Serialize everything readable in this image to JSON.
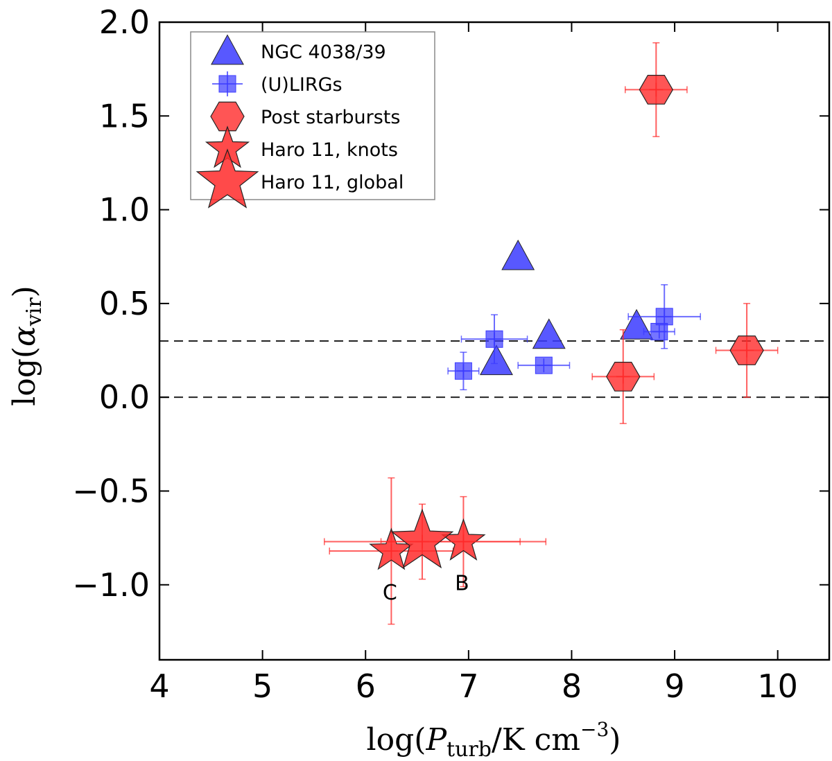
{
  "chart_data": {
    "type": "scatter",
    "xlim": [
      4,
      10.5
    ],
    "ylim": [
      -1.4,
      2.0
    ],
    "xticks": [
      4,
      5,
      6,
      7,
      8,
      9,
      10
    ],
    "xtick_labels": [
      "4",
      "5",
      "6",
      "7",
      "8",
      "9",
      "10"
    ],
    "yticks": [
      -1.0,
      -0.5,
      0.0,
      0.5,
      1.0,
      1.5,
      2.0
    ],
    "ytick_labels": [
      "−1.0",
      "−0.5",
      "0.0",
      "0.5",
      "1.0",
      "1.5",
      "2.0"
    ],
    "xlabel": {
      "prefix": "log(",
      "var": "P",
      "sub": "turb",
      "unit": "/K cm",
      "sup": "−3",
      "suffix": ")"
    },
    "ylabel": {
      "prefix": "log(",
      "var": "α",
      "sub": "vir",
      "suffix": ")"
    },
    "hlines": [
      0.3,
      0.0
    ],
    "legend_position": "top-left",
    "series": [
      {
        "name": "NGC 4038/39",
        "marker": "triangle",
        "color": "#3b3bff",
        "points": [
          {
            "x": 7.48,
            "y": 0.75
          },
          {
            "x": 7.27,
            "y": 0.19
          },
          {
            "x": 7.78,
            "y": 0.33
          },
          {
            "x": 8.63,
            "y": 0.38
          }
        ]
      },
      {
        "name": "(U)LIRGs",
        "marker": "square",
        "color": "#3b3bff",
        "points": [
          {
            "x": 6.95,
            "y": 0.14,
            "xerr": 0.15,
            "yerr": 0.1
          },
          {
            "x": 7.25,
            "y": 0.31,
            "xerr": 0.32,
            "yerr": 0.13
          },
          {
            "x": 7.73,
            "y": 0.17,
            "xerr": 0.25,
            "yerr": 0.0
          },
          {
            "x": 8.85,
            "y": 0.35,
            "xerr": 0.15,
            "yerr": 0.0
          },
          {
            "x": 8.9,
            "y": 0.43,
            "xerr": 0.35,
            "yerr": 0.17
          }
        ]
      },
      {
        "name": "Post starbursts",
        "marker": "hexagon",
        "color": "#ff2a2a",
        "points": [
          {
            "x": 8.82,
            "y": 1.64,
            "xerr": 0.3,
            "yerr": 0.25
          },
          {
            "x": 8.5,
            "y": 0.11,
            "xerr": 0.3,
            "yerr": 0.25
          },
          {
            "x": 9.7,
            "y": 0.25,
            "xerr": 0.3,
            "yerr": 0.25
          }
        ]
      },
      {
        "name": "Haro 11, knots",
        "marker": "star-small",
        "color": "#ff2a2a",
        "points": [
          {
            "x": 6.25,
            "y": -0.82,
            "xerr": 0.6,
            "yerr": 0.39,
            "label": "C"
          },
          {
            "x": 6.95,
            "y": -0.77,
            "xerr": 0.8,
            "yerr": 0.24,
            "label": "B"
          }
        ]
      },
      {
        "name": "Haro 11, global",
        "marker": "star-large",
        "color": "#ff2a2a",
        "points": [
          {
            "x": 6.55,
            "y": -0.77,
            "xerr": 0.95,
            "yerr": 0.2
          }
        ]
      }
    ]
  }
}
